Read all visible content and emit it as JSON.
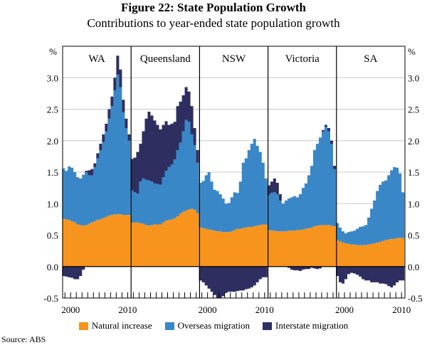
{
  "chart_data": {
    "type": "area",
    "title": "Figure 22: State Population Growth",
    "subtitle": "Contributions to year-ended state population growth",
    "ylabel_left": "%",
    "ylabel_right": "%",
    "ylim": [
      -0.5,
      3.5
    ],
    "yticks": [
      "-0.5",
      "0.0",
      "0.5",
      "1.0",
      "1.5",
      "2.0",
      "2.5",
      "3.0"
    ],
    "xtick_labels": [
      "2000",
      "2010"
    ],
    "stacked": true,
    "grid": true,
    "legend_position": "bottom",
    "colors": {
      "natural": "#f7941d",
      "overseas": "#3a87c8",
      "interstate": "#2e2f60"
    },
    "legend": [
      "Natural increase",
      "Overseas migration",
      "Interstate migration"
    ],
    "x": [
      1998.75,
      1999.25,
      1999.75,
      2000.25,
      2000.75,
      2001.25,
      2001.75,
      2002.25,
      2002.75,
      2003.25,
      2003.75,
      2004.25,
      2004.75,
      2005.25,
      2005.75,
      2006.25,
      2006.75,
      2007.25,
      2007.75,
      2008.25,
      2008.75,
      2009.25,
      2009.75,
      2010.25
    ],
    "panels": [
      {
        "name": "WA",
        "natural": [
          0.76,
          0.75,
          0.74,
          0.72,
          0.7,
          0.67,
          0.66,
          0.65,
          0.66,
          0.68,
          0.7,
          0.72,
          0.74,
          0.75,
          0.77,
          0.79,
          0.81,
          0.82,
          0.83,
          0.83,
          0.83,
          0.82,
          0.82,
          0.82
        ],
        "overseas": [
          0.8,
          0.77,
          0.85,
          0.85,
          0.8,
          0.75,
          0.74,
          0.81,
          0.84,
          0.77,
          0.75,
          0.86,
          0.98,
          1.1,
          1.21,
          1.36,
          1.54,
          1.73,
          1.97,
          2.22,
          2.02,
          1.63,
          1.38,
          1.18
        ],
        "interstate": [
          -0.15,
          -0.16,
          -0.17,
          -0.18,
          -0.2,
          -0.2,
          -0.15,
          -0.05,
          0.02,
          0.08,
          0.1,
          0.06,
          0.08,
          0.1,
          0.12,
          0.12,
          0.15,
          0.15,
          0.2,
          0.3,
          0.28,
          0.2,
          0.15,
          0.1
        ]
      },
      {
        "name": "Queensland",
        "natural": [
          0.7,
          0.7,
          0.7,
          0.69,
          0.68,
          0.66,
          0.65,
          0.66,
          0.67,
          0.67,
          0.67,
          0.7,
          0.73,
          0.74,
          0.75,
          0.77,
          0.8,
          0.84,
          0.87,
          0.89,
          0.91,
          0.92,
          0.9,
          0.85
        ],
        "overseas": [
          0.51,
          0.48,
          0.46,
          0.66,
          0.72,
          0.72,
          0.72,
          0.69,
          0.65,
          0.64,
          0.63,
          0.72,
          0.79,
          0.84,
          0.87,
          0.93,
          1.05,
          1.13,
          1.28,
          1.44,
          1.39,
          1.18,
          1.03,
          0.8
        ],
        "interstate": [
          0.5,
          0.55,
          0.66,
          0.6,
          0.75,
          0.97,
          1.09,
          1.05,
          1.0,
          0.94,
          0.88,
          0.83,
          0.79,
          0.67,
          0.65,
          0.6,
          0.7,
          0.65,
          0.57,
          0.52,
          0.48,
          0.45,
          0.27,
          0.2
        ]
      },
      {
        "name": "NSW",
        "natural": [
          0.62,
          0.61,
          0.6,
          0.59,
          0.58,
          0.57,
          0.56,
          0.56,
          0.55,
          0.55,
          0.55,
          0.56,
          0.58,
          0.6,
          0.6,
          0.61,
          0.62,
          0.63,
          0.63,
          0.64,
          0.65,
          0.66,
          0.67,
          0.67
        ],
        "overseas": [
          0.71,
          0.75,
          0.85,
          0.91,
          0.77,
          0.65,
          0.64,
          0.59,
          0.53,
          0.45,
          0.46,
          0.54,
          0.6,
          0.57,
          0.75,
          1.04,
          1.1,
          1.22,
          1.32,
          1.39,
          1.27,
          1.16,
          0.98,
          0.73
        ],
        "interstate": [
          -0.22,
          -0.25,
          -0.3,
          -0.35,
          -0.4,
          -0.45,
          -0.5,
          -0.5,
          -0.47,
          -0.42,
          -0.4,
          -0.4,
          -0.4,
          -0.39,
          -0.38,
          -0.38,
          -0.36,
          -0.35,
          -0.33,
          -0.3,
          -0.25,
          -0.2,
          -0.17,
          -0.17
        ]
      },
      {
        "name": "Victoria",
        "natural": [
          0.58,
          0.57,
          0.57,
          0.56,
          0.56,
          0.56,
          0.56,
          0.57,
          0.57,
          0.57,
          0.58,
          0.58,
          0.59,
          0.6,
          0.61,
          0.62,
          0.64,
          0.65,
          0.66,
          0.66,
          0.66,
          0.66,
          0.65,
          0.64
        ],
        "overseas": [
          0.56,
          0.6,
          0.61,
          0.59,
          0.49,
          0.44,
          0.49,
          0.51,
          0.53,
          0.55,
          0.52,
          0.57,
          0.66,
          0.72,
          0.84,
          0.98,
          1.21,
          1.3,
          1.39,
          1.49,
          1.56,
          1.49,
          1.3,
          0.91
        ],
        "interstate": [
          0.15,
          0.18,
          0.22,
          0.18,
          0.1,
          0.0,
          0.0,
          -0.02,
          -0.05,
          -0.06,
          -0.06,
          -0.07,
          -0.05,
          -0.04,
          -0.04,
          -0.02,
          -0.03,
          -0.04,
          -0.03,
          0.02,
          0.03,
          0.05,
          0.05,
          0.05
        ]
      },
      {
        "name": "SA",
        "natural": [
          0.42,
          0.4,
          0.38,
          0.37,
          0.36,
          0.35,
          0.35,
          0.34,
          0.34,
          0.34,
          0.34,
          0.35,
          0.36,
          0.37,
          0.38,
          0.39,
          0.41,
          0.42,
          0.43,
          0.44,
          0.44,
          0.45,
          0.46,
          0.45
        ],
        "overseas": [
          0.27,
          0.22,
          0.18,
          0.16,
          0.19,
          0.21,
          0.22,
          0.26,
          0.29,
          0.3,
          0.32,
          0.43,
          0.56,
          0.68,
          0.82,
          0.91,
          0.94,
          0.95,
          1.02,
          1.09,
          1.14,
          1.12,
          1.02,
          0.73
        ],
        "interstate": [
          -0.15,
          -0.25,
          -0.27,
          -0.2,
          -0.12,
          -0.1,
          -0.11,
          -0.13,
          -0.16,
          -0.2,
          -0.22,
          -0.22,
          -0.25,
          -0.25,
          -0.25,
          -0.27,
          -0.27,
          -0.28,
          -0.31,
          -0.33,
          -0.3,
          -0.25,
          -0.22,
          -0.22
        ]
      }
    ]
  },
  "source": "Source:  ABS"
}
